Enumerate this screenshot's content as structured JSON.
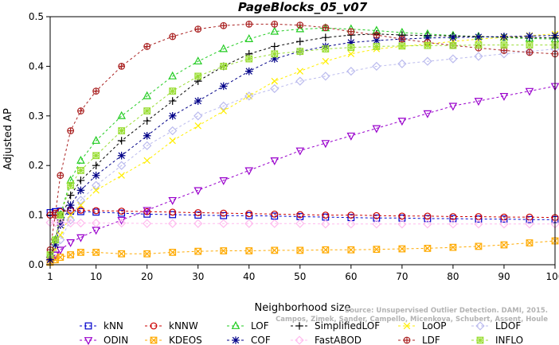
{
  "chart_data": {
    "type": "line",
    "title": "PageBlocks_05_v07",
    "xlabel": "Neighborhood size",
    "ylabel": "Adjusted AP",
    "xlim": [
      1,
      100
    ],
    "ylim": [
      0,
      0.5
    ],
    "x_ticks": [
      1,
      10,
      20,
      30,
      40,
      50,
      60,
      70,
      80,
      90,
      100
    ],
    "y_ticks": [
      0.0,
      0.1,
      0.2,
      0.3,
      0.4,
      0.5
    ],
    "y_tick_labels": [
      "0.0",
      "0.1",
      "0.2",
      "0.3",
      "0.4",
      "0.5"
    ],
    "grid": false,
    "legend_position": "bottom",
    "watermark_lines": [
      "Source: Unsupervised Outlier Detection. DAMI, 2015.",
      "Campos, Zimek, Sander, Campello, Micenkova, Schubert, Assent, Houle"
    ],
    "x": [
      1,
      2,
      3,
      5,
      7,
      10,
      15,
      20,
      25,
      30,
      35,
      40,
      45,
      50,
      55,
      60,
      65,
      70,
      75,
      80,
      85,
      90,
      95,
      100
    ],
    "series": [
      {
        "name": "kNN",
        "color": "#0000cc",
        "marker": "square",
        "dash": "3,3",
        "values": [
          0.105,
          0.107,
          0.108,
          0.108,
          0.107,
          0.106,
          0.104,
          0.102,
          0.101,
          0.1,
          0.099,
          0.099,
          0.098,
          0.097,
          0.096,
          0.095,
          0.094,
          0.094,
          0.093,
          0.093,
          0.092,
          0.092,
          0.091,
          0.091
        ]
      },
      {
        "name": "kNNW",
        "color": "#cc0000",
        "marker": "circle",
        "dash": "3,3",
        "values": [
          0.1,
          0.104,
          0.107,
          0.11,
          0.11,
          0.109,
          0.108,
          0.107,
          0.106,
          0.105,
          0.104,
          0.103,
          0.102,
          0.101,
          0.1,
          0.1,
          0.099,
          0.098,
          0.098,
          0.097,
          0.097,
          0.096,
          0.096,
          0.095
        ]
      },
      {
        "name": "LOF",
        "color": "#22cc22",
        "marker": "triangle-up",
        "dash": "3,3",
        "values": [
          0.02,
          0.05,
          0.1,
          0.17,
          0.21,
          0.25,
          0.3,
          0.34,
          0.38,
          0.41,
          0.435,
          0.455,
          0.47,
          0.475,
          0.477,
          0.475,
          0.472,
          0.468,
          0.465,
          0.462,
          0.46,
          0.458,
          0.456,
          0.455
        ]
      },
      {
        "name": "SimplifiedLOF",
        "color": "#000000",
        "marker": "plus",
        "dash": "3,3",
        "values": [
          0.015,
          0.05,
          0.09,
          0.14,
          0.17,
          0.2,
          0.25,
          0.29,
          0.33,
          0.37,
          0.4,
          0.425,
          0.44,
          0.45,
          0.458,
          0.463,
          0.465,
          0.463,
          0.462,
          0.461,
          0.46,
          0.459,
          0.458,
          0.457
        ]
      },
      {
        "name": "LoOP",
        "color": "#ffee00",
        "marker": "x",
        "dash": "3,3",
        "values": [
          0.01,
          0.03,
          0.06,
          0.1,
          0.12,
          0.15,
          0.18,
          0.21,
          0.25,
          0.28,
          0.31,
          0.34,
          0.37,
          0.39,
          0.41,
          0.425,
          0.435,
          0.44,
          0.445,
          0.45,
          0.455,
          0.458,
          0.462,
          0.465
        ]
      },
      {
        "name": "LDOF",
        "color": "#bbbbee",
        "marker": "diamond",
        "dash": "3,3",
        "values": [
          0.01,
          0.02,
          0.05,
          0.09,
          0.13,
          0.16,
          0.2,
          0.24,
          0.27,
          0.3,
          0.32,
          0.34,
          0.355,
          0.37,
          0.38,
          0.39,
          0.4,
          0.405,
          0.41,
          0.415,
          0.42,
          0.425,
          0.43,
          0.435
        ]
      },
      {
        "name": "ODIN",
        "color": "#9900cc",
        "marker": "triangle-down",
        "dash": "3,3",
        "values": [
          0.01,
          0.02,
          0.03,
          0.045,
          0.055,
          0.07,
          0.09,
          0.11,
          0.13,
          0.15,
          0.17,
          0.19,
          0.21,
          0.23,
          0.245,
          0.26,
          0.275,
          0.29,
          0.305,
          0.32,
          0.33,
          0.34,
          0.35,
          0.36
        ]
      },
      {
        "name": "KDEOS",
        "color": "#ffaa00",
        "marker": "square-x",
        "dash": "3,3",
        "values": [
          0.005,
          0.01,
          0.015,
          0.02,
          0.025,
          0.025,
          0.022,
          0.022,
          0.025,
          0.027,
          0.028,
          0.028,
          0.029,
          0.029,
          0.03,
          0.03,
          0.031,
          0.032,
          0.033,
          0.035,
          0.037,
          0.04,
          0.044,
          0.048
        ]
      },
      {
        "name": "COF",
        "color": "#000088",
        "marker": "asterisk",
        "dash": "3,3",
        "values": [
          0.01,
          0.04,
          0.08,
          0.12,
          0.15,
          0.18,
          0.22,
          0.26,
          0.3,
          0.33,
          0.36,
          0.39,
          0.415,
          0.43,
          0.44,
          0.448,
          0.452,
          0.455,
          0.457,
          0.458,
          0.459,
          0.46,
          0.461,
          0.462
        ]
      },
      {
        "name": "FastABOD",
        "color": "#ffbbee",
        "marker": "diamond",
        "dash": "3,3",
        "values": [
          0.085,
          0.085,
          0.085,
          0.084,
          0.084,
          0.084,
          0.084,
          0.083,
          0.083,
          0.083,
          0.083,
          0.083,
          0.083,
          0.083,
          0.082,
          0.082,
          0.082,
          0.082,
          0.082,
          0.082,
          0.082,
          0.082,
          0.082,
          0.082
        ]
      },
      {
        "name": "LDF",
        "color": "#aa2222",
        "marker": "circle-plus",
        "dash": "3,3",
        "values": [
          0.03,
          0.1,
          0.18,
          0.27,
          0.31,
          0.35,
          0.4,
          0.44,
          0.46,
          0.475,
          0.482,
          0.485,
          0.485,
          0.483,
          0.478,
          0.47,
          0.463,
          0.455,
          0.448,
          0.442,
          0.437,
          0.432,
          0.428,
          0.425
        ]
      },
      {
        "name": "INFLO",
        "color": "#99dd33",
        "marker": "square-star",
        "dash": "3,3",
        "values": [
          0.02,
          0.05,
          0.1,
          0.16,
          0.19,
          0.22,
          0.27,
          0.31,
          0.35,
          0.38,
          0.4,
          0.415,
          0.425,
          0.43,
          0.435,
          0.438,
          0.44,
          0.441,
          0.442,
          0.442,
          0.443,
          0.443,
          0.443,
          0.443
        ]
      }
    ]
  }
}
